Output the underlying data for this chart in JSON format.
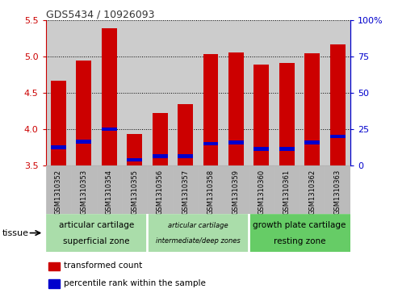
{
  "title": "GDS5434 / 10926093",
  "samples": [
    "GSM1310352",
    "GSM1310353",
    "GSM1310354",
    "GSM1310355",
    "GSM1310356",
    "GSM1310357",
    "GSM1310358",
    "GSM1310359",
    "GSM1310360",
    "GSM1310361",
    "GSM1310362",
    "GSM1310363"
  ],
  "red_values": [
    4.67,
    4.95,
    5.39,
    3.93,
    4.22,
    4.35,
    5.04,
    5.06,
    4.89,
    4.91,
    5.05,
    5.17
  ],
  "blue_values": [
    3.75,
    3.83,
    4.0,
    3.58,
    3.63,
    3.63,
    3.8,
    3.82,
    3.73,
    3.73,
    3.82,
    3.9
  ],
  "ymin": 3.5,
  "ymax": 5.5,
  "y_ticks": [
    3.5,
    4.0,
    4.5,
    5.0,
    5.5
  ],
  "right_yticks": [
    0,
    25,
    50,
    75,
    100
  ],
  "right_yticklabels": [
    "0",
    "25",
    "50",
    "75",
    "100%"
  ],
  "bar_width": 0.6,
  "red_color": "#cc0000",
  "blue_color": "#0000cc",
  "bg_color": "#cccccc",
  "tick_bg_color": "#bbbbbb",
  "group1_label1": "articular cartilage",
  "group1_label2": "superficial zone",
  "group2_label1": "articular cartilage",
  "group2_label2": "intermediate/deep zones",
  "group3_label1": "growth plate cartilage",
  "group3_label2": "resting zone",
  "group1_color": "#aaddaa",
  "group2_color": "#aaddaa",
  "group3_color": "#66cc66",
  "group1_indices": [
    0,
    1,
    2,
    3
  ],
  "group2_indices": [
    4,
    5,
    6,
    7
  ],
  "group3_indices": [
    8,
    9,
    10,
    11
  ],
  "tissue_label": "tissue",
  "legend_red": "transformed count",
  "legend_blue": "percentile rank within the sample",
  "title_color": "#333333",
  "left_axis_color": "#cc0000",
  "right_axis_color": "#0000cc",
  "grid_color": "black",
  "blue_bar_height": 0.05
}
